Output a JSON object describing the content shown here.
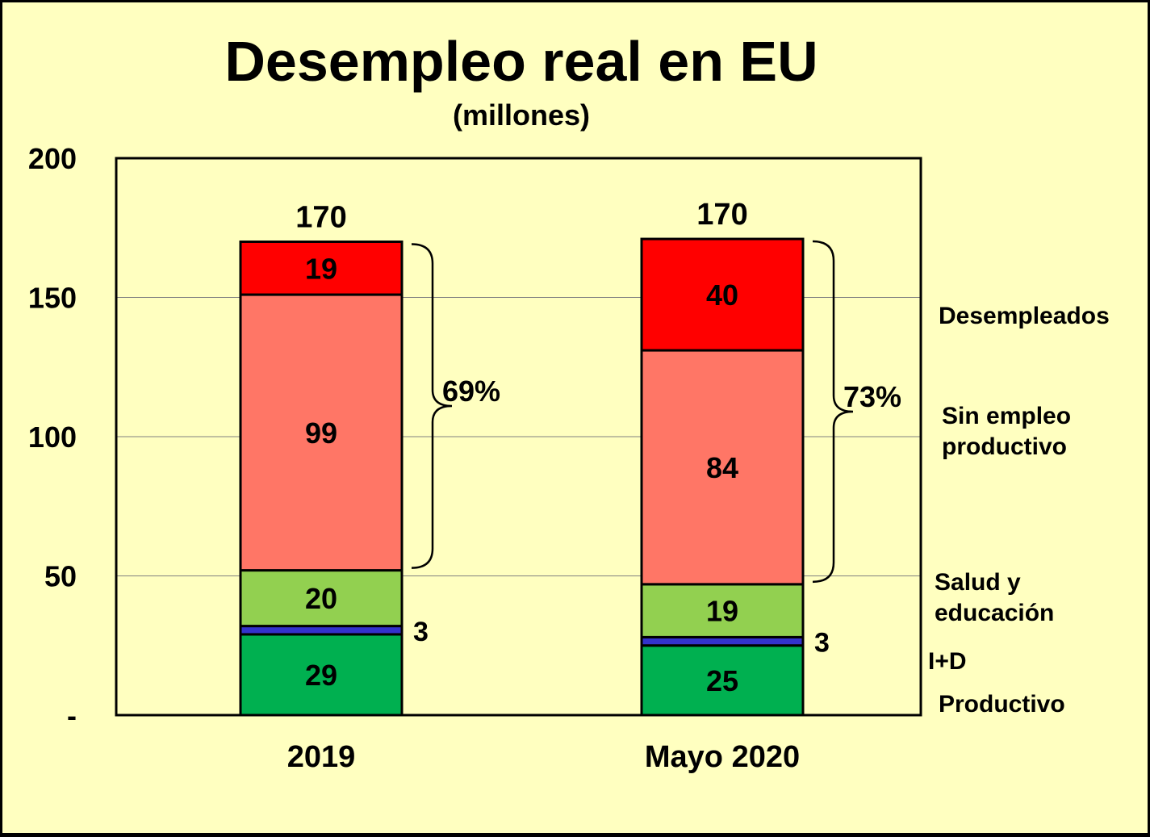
{
  "chart_data": {
    "type": "bar",
    "stacked": true,
    "title": "Desempleo real en EU",
    "subtitle": "(millones)",
    "categories": [
      "2019",
      "Mayo 2020"
    ],
    "ylim": [
      0,
      200
    ],
    "yticks": [
      {
        "value": 0,
        "label": "-"
      },
      {
        "value": 50,
        "label": "50"
      },
      {
        "value": 100,
        "label": "100"
      },
      {
        "value": 150,
        "label": "150"
      },
      {
        "value": 200,
        "label": "200"
      }
    ],
    "grid": true,
    "series": [
      {
        "name": "Productivo",
        "color": "#00b050",
        "values": [
          29,
          25
        ],
        "labels": [
          "29",
          "25"
        ]
      },
      {
        "name": "I+D",
        "color": "#3333cc",
        "values": [
          3,
          3
        ],
        "labels": [
          "3",
          "3"
        ]
      },
      {
        "name": "Salud y educación",
        "color": "#92d050",
        "values": [
          20,
          19
        ],
        "labels": [
          "20",
          "19"
        ]
      },
      {
        "name": "Sin empleo productivo",
        "color": "#ff7666",
        "values": [
          99,
          84
        ],
        "labels": [
          "99",
          "84"
        ]
      },
      {
        "name": "Desempleados",
        "color": "#ff0000",
        "values": [
          19,
          40
        ],
        "labels": [
          "19",
          "40"
        ]
      }
    ],
    "totals": [
      "170",
      "170"
    ],
    "brackets": [
      "69%",
      "73%"
    ],
    "legend": {
      "placement": "right",
      "items": [
        {
          "lines": [
            "Desempleados"
          ]
        },
        {
          "lines": [
            "Sin empleo",
            "productivo"
          ]
        },
        {
          "lines": [
            "Salud y",
            "educación"
          ]
        },
        {
          "lines": [
            "I+D"
          ]
        },
        {
          "lines": [
            "Productivo"
          ]
        }
      ]
    }
  }
}
